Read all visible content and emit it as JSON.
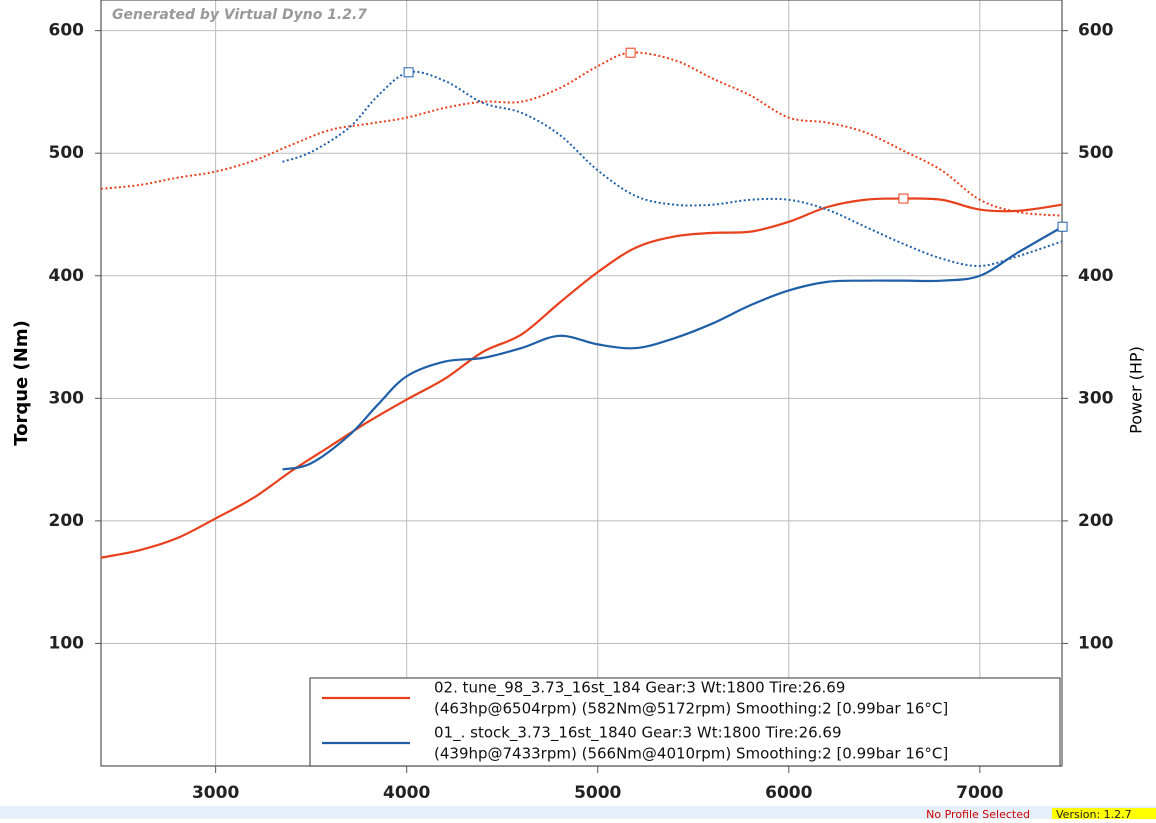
{
  "chart_data": {
    "type": "line",
    "credit": "Generated by Virtual Dyno 1.2.7",
    "ylabel": "Torque (Nm)",
    "y2label": "Power (HP)",
    "xlim": [
      2400,
      7430
    ],
    "ylim": [
      0,
      625
    ],
    "y2lim": [
      0,
      625
    ],
    "xticks": [
      3000,
      4000,
      5000,
      6000,
      7000
    ],
    "yticks": [
      100,
      200,
      300,
      400,
      500,
      600
    ],
    "y2ticks": [
      100,
      200,
      300,
      400,
      500,
      600
    ],
    "grid": true,
    "series": [
      {
        "color": "#e8401c",
        "style": "solid",
        "axis": "y2",
        "x": [
          2400,
          2600,
          2800,
          3000,
          3200,
          3400,
          3600,
          3800,
          4000,
          4200,
          4400,
          4600,
          4800,
          5000,
          5200,
          5400,
          5600,
          5800,
          6000,
          6200,
          6400,
          6600,
          6800,
          7000,
          7200,
          7430
        ],
        "values": [
          170,
          176,
          186,
          202,
          219,
          241,
          261,
          281,
          299,
          316,
          338,
          352,
          378,
          403,
          423,
          432,
          435,
          436,
          444,
          456,
          462,
          463,
          462,
          454,
          453,
          458
        ]
      },
      {
        "color": "#e8401c",
        "style": "dotted",
        "axis": "y",
        "x": [
          2400,
          2600,
          2800,
          3000,
          3200,
          3400,
          3600,
          3800,
          4000,
          4200,
          4400,
          4600,
          4800,
          5000,
          5172,
          5400,
          5600,
          5800,
          6000,
          6200,
          6400,
          6600,
          6800,
          7000,
          7200,
          7430
        ],
        "values": [
          471,
          474,
          480,
          485,
          494,
          507,
          519,
          524,
          529,
          537,
          542,
          542,
          553,
          571,
          582,
          576,
          561,
          547,
          529,
          525,
          517,
          502,
          486,
          462,
          452,
          449
        ]
      },
      {
        "color": "#1f5fa8",
        "style": "solid",
        "axis": "y2",
        "x": [
          3350,
          3500,
          3700,
          3850,
          4000,
          4200,
          4400,
          4600,
          4800,
          5000,
          5200,
          5400,
          5600,
          5800,
          6000,
          6200,
          6400,
          6600,
          6800,
          7000,
          7200,
          7433
        ],
        "values": [
          242,
          247,
          270,
          295,
          318,
          330,
          333,
          341,
          351,
          344,
          341,
          349,
          361,
          376,
          388,
          395,
          396,
          396,
          396,
          400,
          419,
          440
        ]
      },
      {
        "color": "#1f5fa8",
        "style": "dotted",
        "axis": "y",
        "x": [
          3350,
          3500,
          3700,
          3850,
          4010,
          4200,
          4400,
          4600,
          4800,
          5000,
          5200,
          5400,
          5600,
          5800,
          6000,
          6200,
          6400,
          6600,
          6800,
          7000,
          7200,
          7430
        ],
        "values": [
          493,
          501,
          521,
          547,
          566,
          559,
          541,
          533,
          515,
          486,
          465,
          458,
          458,
          462,
          462,
          454,
          440,
          426,
          414,
          408,
          416,
          428
        ]
      }
    ],
    "legend": [
      {
        "color": "#e8401c",
        "lines": [
          "02. tune_98_3.73_16st_184 Gear:3 Wt:1800 Tire:26.69",
          "(463hp@6504rpm) (582Nm@5172rpm) Smoothing:2 [0.99bar 16°C]"
        ]
      },
      {
        "color": "#1f5fa8",
        "lines": [
          "01_. stock_3.73_16st_1840 Gear:3 Wt:1800 Tire:26.69",
          "(439hp@7433rpm) (566Nm@4010rpm) Smoothing:2 [0.99bar 16°C]"
        ]
      }
    ]
  },
  "status": {
    "profile": "No Profile Selected",
    "version": "Version: 1.2.7"
  }
}
